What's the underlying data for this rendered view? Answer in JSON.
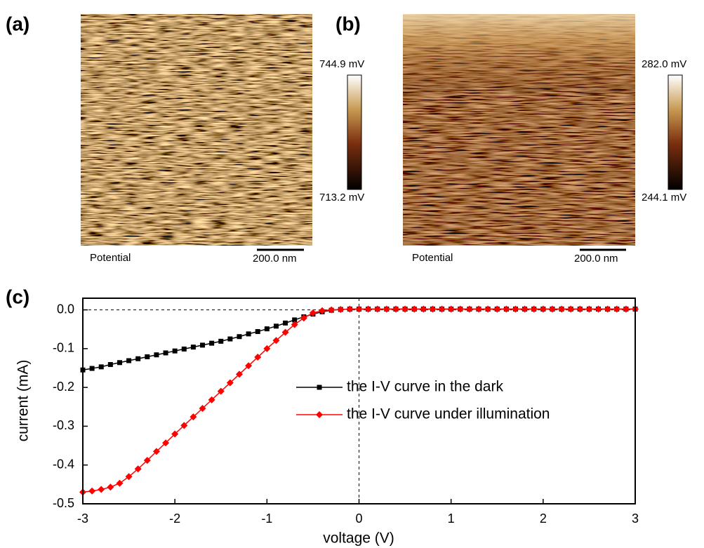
{
  "images": [
    {
      "label": "(a)",
      "colorbar_max": "744.9 mV",
      "colorbar_min": "713.2 mV",
      "caption": "Potential",
      "scale_bar": "200.0 nm"
    },
    {
      "label": "(b)",
      "colorbar_max": "282.0 mV",
      "colorbar_min": "244.1 mV",
      "caption": "Potential",
      "scale_bar": "200.0 nm"
    }
  ],
  "chart_data": {
    "type": "line",
    "panel_label": "(c)",
    "x_label": "voltage (V)",
    "y_label": "current (mA)",
    "xlim": [
      -3,
      3
    ],
    "ylim": [
      -0.5,
      0.03
    ],
    "xticks": [
      -3,
      -2,
      -1,
      0,
      1,
      2,
      3
    ],
    "yticks": [
      {
        "value": 0,
        "label": "0.0"
      },
      -0.1,
      -0.2,
      -0.3,
      -0.4,
      -0.5
    ],
    "x": [
      -3.0,
      -2.9,
      -2.8,
      -2.7,
      -2.6,
      -2.5,
      -2.4,
      -2.3,
      -2.2,
      -2.1,
      -2.0,
      -1.9,
      -1.8,
      -1.7,
      -1.6,
      -1.5,
      -1.4,
      -1.3,
      -1.2,
      -1.1,
      -1.0,
      -0.9,
      -0.8,
      -0.7,
      -0.6,
      -0.5,
      -0.4,
      -0.3,
      -0.2,
      -0.1,
      0.0,
      0.1,
      0.2,
      0.3,
      0.4,
      0.5,
      0.6,
      0.7,
      0.8,
      0.9,
      1.0,
      1.1,
      1.2,
      1.3,
      1.4,
      1.5,
      1.6,
      1.7,
      1.8,
      1.9,
      2.0,
      2.1,
      2.2,
      2.3,
      2.4,
      2.5,
      2.6,
      2.7,
      2.8,
      2.9,
      3.0
    ],
    "series": [
      {
        "name": "the I-V curve in the dark",
        "color": "#000000",
        "marker": "square",
        "values": [
          -0.155,
          -0.151,
          -0.147,
          -0.141,
          -0.136,
          -0.131,
          -0.126,
          -0.121,
          -0.116,
          -0.111,
          -0.106,
          -0.101,
          -0.096,
          -0.091,
          -0.086,
          -0.081,
          -0.075,
          -0.069,
          -0.062,
          -0.056,
          -0.049,
          -0.042,
          -0.034,
          -0.026,
          -0.018,
          -0.011,
          -0.005,
          -0.001,
          0.001,
          0.002,
          0.002,
          0.002,
          0.002,
          0.002,
          0.002,
          0.002,
          0.002,
          0.002,
          0.002,
          0.002,
          0.002,
          0.002,
          0.002,
          0.002,
          0.002,
          0.002,
          0.002,
          0.002,
          0.002,
          0.002,
          0.002,
          0.002,
          0.002,
          0.002,
          0.002,
          0.002,
          0.002,
          0.002,
          0.002,
          0.002,
          0.002
        ]
      },
      {
        "name": "the I-V curve under illumination",
        "color": "#ff0000",
        "marker": "diamond",
        "values": [
          -0.47,
          -0.467,
          -0.463,
          -0.457,
          -0.447,
          -0.43,
          -0.41,
          -0.388,
          -0.365,
          -0.343,
          -0.32,
          -0.298,
          -0.276,
          -0.254,
          -0.232,
          -0.21,
          -0.188,
          -0.166,
          -0.144,
          -0.122,
          -0.1,
          -0.079,
          -0.058,
          -0.038,
          -0.021,
          -0.008,
          -0.002,
          0.0,
          0.001,
          0.002,
          0.002,
          0.002,
          0.002,
          0.002,
          0.002,
          0.002,
          0.002,
          0.002,
          0.002,
          0.002,
          0.002,
          0.002,
          0.002,
          0.002,
          0.002,
          0.002,
          0.002,
          0.002,
          0.002,
          0.002,
          0.002,
          0.002,
          0.002,
          0.002,
          0.002,
          0.002,
          0.002,
          0.002,
          0.002,
          0.002,
          0.002
        ]
      }
    ]
  }
}
